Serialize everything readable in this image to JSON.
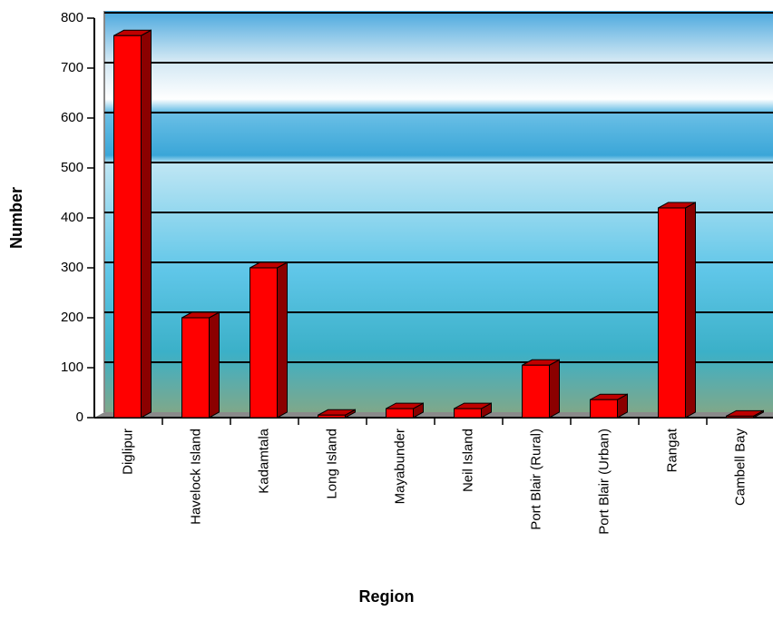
{
  "chart_data": {
    "type": "bar3d",
    "x_label": "Region",
    "y_label": "Number",
    "categories": [
      "Diglipur",
      "Havelock Island",
      "Kadamtala",
      "Long Island",
      "Mayabunder",
      "Neil Island",
      "Port Blair (Rural)",
      "Port Blair (Urban)",
      "Rangat",
      "Cambell Bay"
    ],
    "values": [
      765,
      200,
      300,
      5,
      18,
      18,
      105,
      36,
      420,
      3
    ],
    "color": "#ff0000",
    "ylim": [
      0,
      800
    ],
    "yticks": [
      0,
      100,
      200,
      300,
      400,
      500,
      600,
      700,
      800
    ],
    "grid": true
  }
}
